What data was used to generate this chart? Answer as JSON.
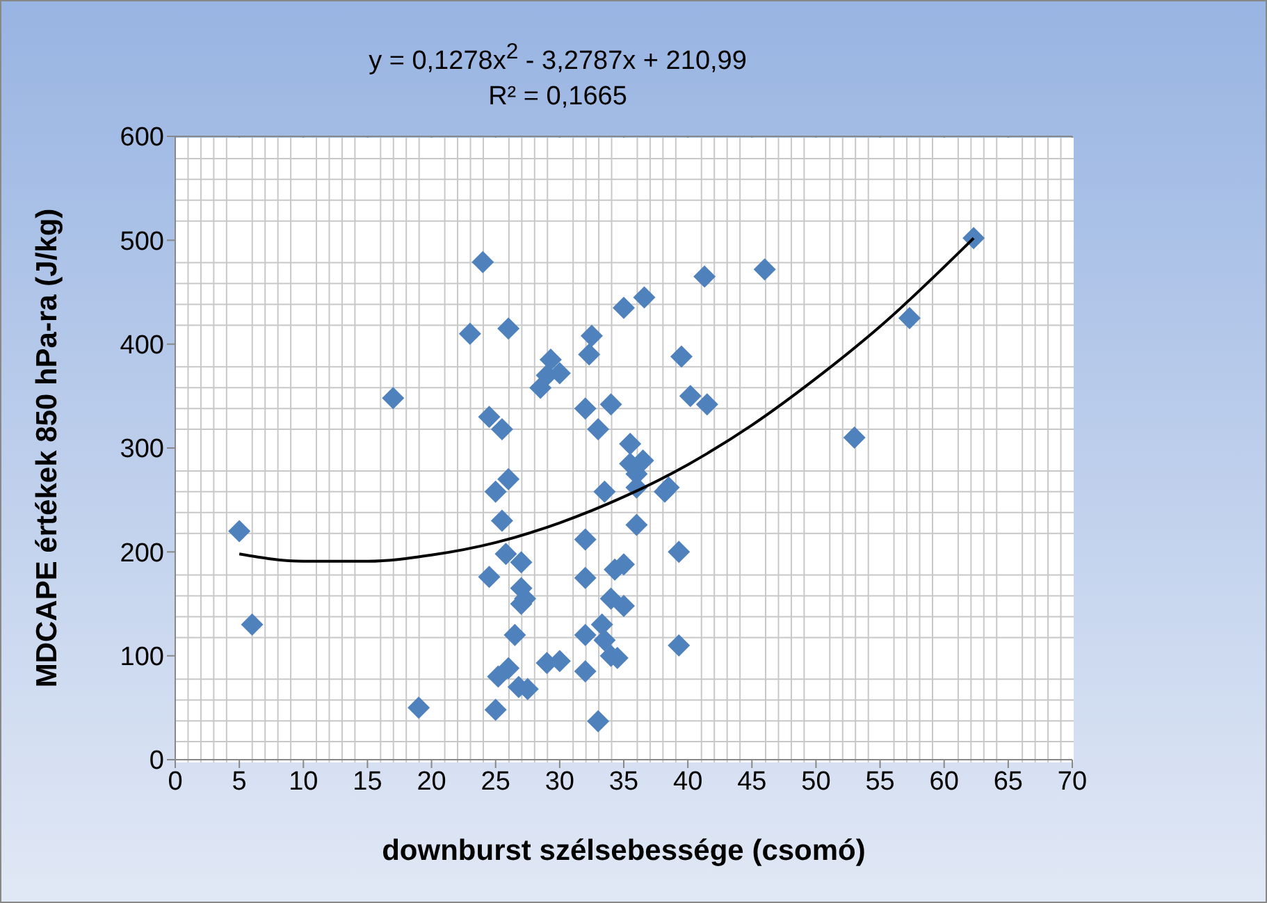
{
  "chart_data": {
    "type": "scatter",
    "xlabel": "downburst szélsebessége (csomó)",
    "ylabel": "MDCAPE értékek  850 hPa-ra (J/kg)",
    "annotations": [
      "y = 0,1278x$^{2}$ - 3,2787x + 210,99",
      "R² = 0,1665"
    ],
    "xlim": [
      0,
      70
    ],
    "xticks": [
      0,
      5,
      10,
      15,
      20,
      25,
      30,
      35,
      40,
      45,
      50,
      55,
      60,
      65,
      70
    ],
    "ylim": [
      0,
      600
    ],
    "yticks": [
      0,
      100,
      200,
      300,
      400,
      500,
      600
    ],
    "grid": true,
    "legend": false,
    "series": [
      {
        "color": "#4f81bd",
        "marker": "diamond",
        "x": [
          5,
          6,
          17,
          19,
          23,
          24,
          24.5,
          24.5,
          25,
          25.2,
          25,
          25.5,
          25.5,
          25.8,
          26,
          26,
          26,
          26.5,
          26.8,
          27,
          27,
          27,
          27.3,
          27.5,
          28.5,
          29,
          29,
          29.3,
          30,
          30,
          32,
          32,
          32,
          32,
          32,
          32.3,
          32.5,
          33,
          33,
          33.3,
          33.5,
          33.5,
          34,
          34,
          34,
          34.3,
          34.5,
          35,
          35,
          35,
          35.5,
          35.5,
          36,
          36,
          36,
          36.5,
          36.6,
          38.5,
          38.2,
          39.3,
          39.3,
          39.5,
          40.2,
          41.3,
          41.5,
          46,
          53,
          57.3,
          62.3
        ],
        "values": [
          220,
          130,
          348,
          50,
          410,
          479,
          330,
          176,
          258,
          80,
          48,
          318,
          230,
          198,
          415,
          270,
          88,
          120,
          70,
          165,
          190,
          150,
          155,
          68,
          358,
          93,
          370,
          385,
          95,
          372,
          120,
          85,
          212,
          338,
          175,
          390,
          408,
          37,
          318,
          130,
          258,
          115,
          155,
          100,
          342,
          183,
          98,
          435,
          148,
          188,
          304,
          285,
          275,
          226,
          262,
          288,
          445,
          262,
          258,
          110,
          200,
          388,
          350,
          465,
          342,
          472,
          310,
          425,
          502
        ]
      },
      {
        "type": "line",
        "color": "#000000",
        "marker": "none",
        "x": [
          5,
          10,
          15,
          20,
          25,
          30,
          35,
          40,
          45,
          50,
          55,
          62.3
        ],
        "values": [
          198,
          191,
          191,
          197,
          209,
          228,
          253,
          284,
          322,
          367,
          417,
          502
        ]
      }
    ]
  }
}
